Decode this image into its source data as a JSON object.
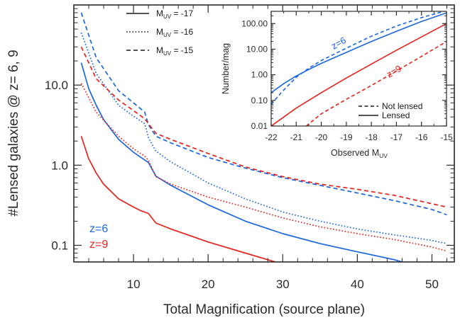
{
  "colors": {
    "z6": "#1a66e0",
    "z9": "#e8221c",
    "axis": "#2b2b2b"
  },
  "chart_data": [
    {
      "type": "line",
      "title": "",
      "xlabel": "Total Magnification (source plane)",
      "ylabel": "#Lensed galaxies @ z= 6, 9",
      "xlim": [
        2,
        53
      ],
      "ylim": [
        0.062,
        100
      ],
      "yscale": "log",
      "xticks": [
        10,
        20,
        30,
        40,
        50
      ],
      "xtick_labels": [
        "10",
        "20",
        "30",
        "40",
        "50"
      ],
      "yticks": [
        0.1,
        1.0,
        10.0
      ],
      "ytick_labels": [
        "0.1",
        "1.0",
        "10.0"
      ],
      "legend": {
        "placement": "top-center",
        "entries": [
          {
            "style": "solid",
            "prefix": "M",
            "sub": "UV",
            "suffix": " = -17"
          },
          {
            "style": "dotted",
            "prefix": "M",
            "sub": "UV",
            "suffix": " = -16"
          },
          {
            "style": "dashed",
            "prefix": "M",
            "sub": "UV",
            "suffix": " = -15"
          }
        ]
      },
      "annotations": [
        {
          "text": "z=6",
          "color_key": "z6"
        },
        {
          "text": "z=9",
          "color_key": "z9"
        }
      ],
      "series": [
        {
          "redshift": "z=6",
          "style": "dashed",
          "color_key": "z6",
          "x": [
            3,
            5,
            8,
            10,
            11.5,
            12,
            13,
            15,
            20,
            25,
            30,
            35,
            40,
            45,
            50,
            52
          ],
          "y": [
            80,
            22,
            8.5,
            6.0,
            4.6,
            3.2,
            2.3,
            1.9,
            1.25,
            0.92,
            0.7,
            0.56,
            0.45,
            0.36,
            0.28,
            0.24
          ]
        },
        {
          "redshift": "z=6",
          "style": "dotted",
          "color_key": "z6",
          "x": [
            3,
            5,
            8,
            10,
            11.5,
            12,
            13,
            15,
            20,
            25,
            30,
            35,
            40,
            45,
            50,
            52
          ],
          "y": [
            45,
            14,
            5.6,
            4.1,
            3.3,
            2.2,
            1.5,
            1.1,
            0.6,
            0.38,
            0.26,
            0.2,
            0.16,
            0.135,
            0.115,
            0.105
          ]
        },
        {
          "redshift": "z=6",
          "style": "solid",
          "color_key": "z6",
          "x": [
            3,
            4,
            5,
            6,
            8,
            10,
            11,
            12,
            13,
            15,
            20,
            25,
            30,
            35,
            40,
            45,
            46
          ],
          "y": [
            19,
            9,
            5.6,
            3.7,
            2.1,
            1.45,
            1.25,
            1.08,
            0.73,
            0.56,
            0.32,
            0.2,
            0.14,
            0.105,
            0.083,
            0.066,
            0.062
          ]
        },
        {
          "redshift": "z=9",
          "style": "dashed",
          "color_key": "z9",
          "x": [
            3,
            5,
            8,
            10,
            11.5,
            12,
            13,
            15,
            20,
            25,
            30,
            35,
            40,
            45,
            50,
            52
          ],
          "y": [
            30,
            12,
            6.5,
            4.8,
            3.8,
            3.3,
            2.5,
            2.1,
            1.4,
            0.95,
            0.72,
            0.58,
            0.5,
            0.42,
            0.33,
            0.3
          ]
        },
        {
          "redshift": "z=9",
          "style": "dotted",
          "color_key": "z9",
          "x": [
            3,
            5,
            8,
            10,
            11.5,
            12,
            13,
            15,
            20,
            25,
            30,
            35,
            40,
            45,
            50,
            52
          ],
          "y": [
            10.5,
            4.6,
            2.3,
            1.6,
            1.3,
            1.15,
            0.72,
            0.58,
            0.4,
            0.3,
            0.22,
            0.17,
            0.14,
            0.118,
            0.095,
            0.085
          ]
        },
        {
          "redshift": "z=9",
          "style": "solid",
          "color_key": "z9",
          "x": [
            3,
            4,
            5,
            6,
            8,
            10,
            11,
            12,
            13,
            15,
            20,
            25,
            29
          ],
          "y": [
            2.3,
            1.2,
            0.8,
            0.58,
            0.38,
            0.3,
            0.27,
            0.25,
            0.19,
            0.16,
            0.11,
            0.08,
            0.062
          ]
        }
      ]
    },
    {
      "type": "line",
      "title": "",
      "xlabel_prefix": "Observed M",
      "xlabel_sub": "UV",
      "ylabel": "Number/mag",
      "xlim": [
        -22,
        -15
      ],
      "ylim": [
        0.01,
        300
      ],
      "yscale": "log",
      "xticks": [
        -22,
        -21,
        -20,
        -19,
        -18,
        -17,
        -16,
        -15
      ],
      "xtick_labels": [
        "-22",
        "-21",
        "-20",
        "-19",
        "-18",
        "-17",
        "-16",
        "-15"
      ],
      "yticks": [
        0.01,
        0.1,
        1,
        10,
        100
      ],
      "ytick_labels": [
        "0.01",
        "0.10",
        "1.00",
        "10.00",
        "100.00"
      ],
      "legend": {
        "placement": "bottom-right",
        "entries": [
          {
            "style": "dashed",
            "label": "Not lensed"
          },
          {
            "style": "solid",
            "label": "Lensed"
          }
        ]
      },
      "annotations": [
        {
          "text": "z=6",
          "color_key": "z6"
        },
        {
          "text": "z=9",
          "color_key": "z9"
        }
      ],
      "series": [
        {
          "redshift": "z=6",
          "style": "solid",
          "color_key": "z6",
          "x": [
            -22,
            -21.5,
            -21,
            -20.5,
            -20,
            -19,
            -18,
            -17,
            -16,
            -15
          ],
          "y": [
            0.2,
            0.45,
            0.9,
            1.6,
            2.8,
            7.5,
            20,
            50,
            120,
            260
          ]
        },
        {
          "redshift": "z=6",
          "style": "dashed",
          "color_key": "z6",
          "x": [
            -22,
            -21.6,
            -21.2,
            -21,
            -20.5,
            -20,
            -19,
            -18,
            -17,
            -16,
            -15
          ],
          "y": [
            0.07,
            0.2,
            0.5,
            0.8,
            1.8,
            3.6,
            11,
            32,
            80,
            170,
            320
          ]
        },
        {
          "redshift": "z=9",
          "style": "solid",
          "color_key": "z9",
          "x": [
            -22,
            -21,
            -20,
            -19,
            -18,
            -17,
            -16,
            -15
          ],
          "y": [
            0.01,
            0.05,
            0.2,
            0.75,
            2.6,
            9,
            30,
            100
          ]
        },
        {
          "redshift": "z=9",
          "style": "dashed",
          "color_key": "z9",
          "x": [
            -20.6,
            -20,
            -19,
            -18,
            -17,
            -16,
            -15
          ],
          "y": [
            0.01,
            0.03,
            0.11,
            0.38,
            1.4,
            5.2,
            20
          ]
        }
      ]
    }
  ]
}
